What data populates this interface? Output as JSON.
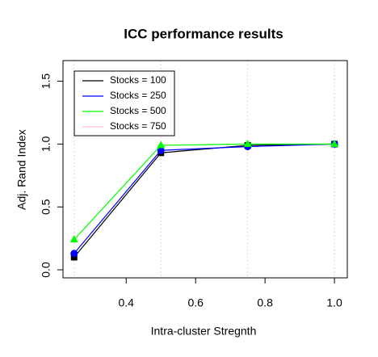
{
  "chart_data": {
    "type": "line",
    "title": "ICC performance results",
    "xlabel": "Intra-cluster Stregnth",
    "ylabel": "Adj. Rand Index",
    "x": [
      0.25,
      0.5,
      0.75,
      1.0
    ],
    "series": [
      {
        "name": "Stocks = 100",
        "color": "#000000",
        "marker": "square",
        "values": [
          0.1,
          0.93,
          0.99,
          1.0
        ]
      },
      {
        "name": "Stocks = 250",
        "color": "#0000ff",
        "marker": "circle",
        "values": [
          0.13,
          0.95,
          0.98,
          1.0
        ]
      },
      {
        "name": "Stocks = 500",
        "color": "#00ff00",
        "marker": "triangle",
        "values": [
          0.24,
          0.99,
          1.0,
          1.0
        ]
      },
      {
        "name": "Stocks = 750",
        "color": "#ffc0cb",
        "marker": "none",
        "values": [
          null,
          null,
          null,
          null
        ]
      }
    ],
    "vlines": [
      0.25,
      0.5,
      0.75,
      1.0
    ],
    "vline_color": "#ffb6c1",
    "xlim": [
      0.218,
      1.037
    ],
    "ylim": [
      -0.064,
      1.664
    ],
    "xticks": [
      0.4,
      0.6,
      0.8,
      {
        "value": 1.0,
        "label": "1.0"
      }
    ],
    "yticks": [
      {
        "value": 0,
        "label": "0.0"
      },
      0.5,
      {
        "value": 1.0,
        "label": "1.0"
      },
      1.5
    ],
    "legend": "top-left"
  }
}
